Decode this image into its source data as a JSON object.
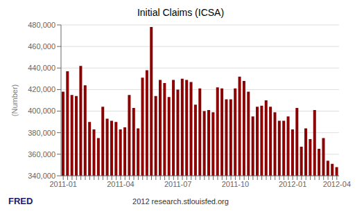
{
  "chart_data": {
    "type": "bar",
    "title": "Initial Claims (ICSA)",
    "y_label": "(Number)",
    "annotations": [
      "FRED",
      "2012 research.stlouisfed.org"
    ],
    "categories": [
      "2011-01",
      null,
      null,
      null,
      null,
      null,
      null,
      null,
      null,
      null,
      null,
      null,
      null,
      "2011-04",
      null,
      null,
      null,
      null,
      null,
      null,
      null,
      null,
      null,
      null,
      null,
      null,
      "2011-07",
      null,
      null,
      null,
      null,
      null,
      null,
      null,
      null,
      null,
      null,
      null,
      null,
      "2011-10",
      null,
      null,
      null,
      null,
      null,
      null,
      null,
      null,
      null,
      null,
      null,
      null,
      "2012-01",
      null,
      null,
      null,
      null,
      null,
      null,
      null,
      null,
      null,
      "2012-04"
    ],
    "values": [
      418000,
      437000,
      415000,
      414000,
      442000,
      424000,
      390000,
      383000,
      375000,
      404000,
      393000,
      391000,
      390000,
      383000,
      385000,
      415000,
      403000,
      384000,
      431000,
      438000,
      478000,
      414000,
      429000,
      426000,
      413000,
      429000,
      420000,
      430000,
      429000,
      427000,
      406000,
      421000,
      400000,
      401000,
      399000,
      422000,
      421000,
      411000,
      411000,
      421000,
      432000,
      428000,
      418000,
      395000,
      404000,
      405000,
      410000,
      404000,
      399000,
      391000,
      391000,
      395000,
      383000,
      403000,
      367000,
      384000,
      374000,
      401000,
      365000,
      375000,
      354000,
      351000,
      348000
    ],
    "color": "#8B0000",
    "ylim": [
      340000,
      480000
    ],
    "yticks": [
      {
        "value": 340000,
        "label": "340,000"
      },
      {
        "value": 360000,
        "label": "360,000"
      },
      {
        "value": 380000,
        "label": "380,000"
      },
      {
        "value": 400000,
        "label": "400,000"
      },
      {
        "value": 420000,
        "label": "420,000"
      },
      {
        "value": 440000,
        "label": "440,000"
      },
      {
        "value": 460000,
        "label": "460,000"
      },
      {
        "value": 480000,
        "label": "480,000"
      }
    ],
    "grid": true
  }
}
